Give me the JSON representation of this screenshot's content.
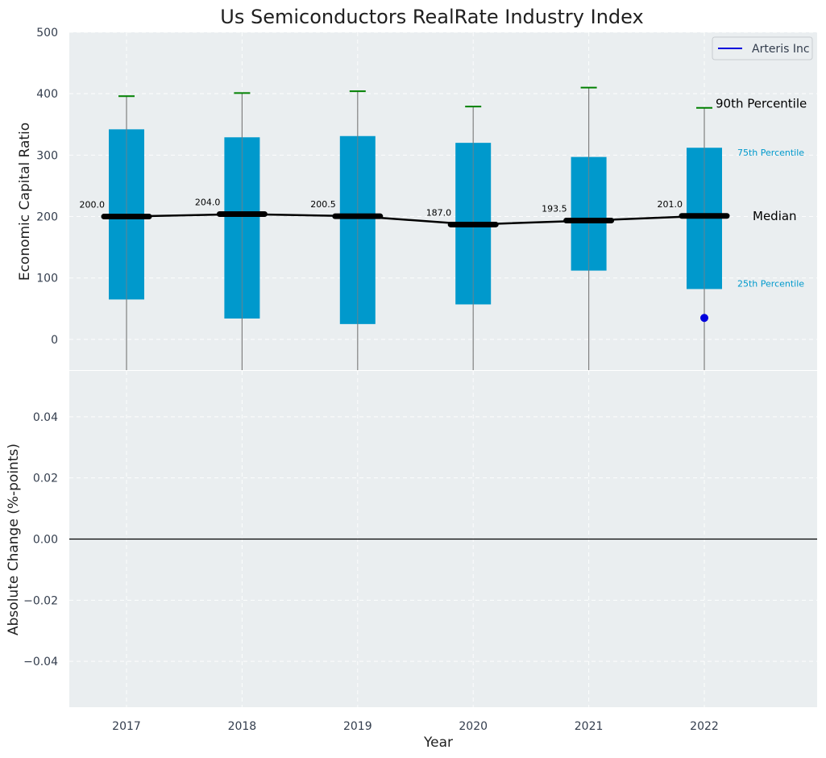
{
  "chart_data": {
    "type": "box",
    "title": "Us Semiconductors RealRate Industry Index",
    "xlabel": "Year",
    "categories": [
      "2017",
      "2018",
      "2019",
      "2020",
      "2021",
      "2022"
    ],
    "top_panel": {
      "ylabel": "Economic Capital Ratio",
      "ylim": [
        -50,
        500
      ],
      "yticks": [
        "0",
        "100",
        "200",
        "300",
        "400",
        "500"
      ],
      "boxes": [
        {
          "year": "2017",
          "p25": 65,
          "p75": 342,
          "median": 200.0,
          "median_label": "200.0",
          "p90": 396
        },
        {
          "year": "2018",
          "p25": 34,
          "p75": 329,
          "median": 204.0,
          "median_label": "204.0",
          "p90": 401
        },
        {
          "year": "2019",
          "p25": 25,
          "p75": 331,
          "median": 200.5,
          "median_label": "200.5",
          "p90": 404
        },
        {
          "year": "2020",
          "p25": 57,
          "p75": 320,
          "median": 187.0,
          "median_label": "187.0",
          "p90": 379
        },
        {
          "year": "2021",
          "p25": 112,
          "p75": 297,
          "median": 193.5,
          "median_label": "193.5",
          "p90": 410
        },
        {
          "year": "2022",
          "p25": 82,
          "p75": 312,
          "median": 201.0,
          "median_label": "201.0",
          "p90": 377
        }
      ],
      "company_points": [
        {
          "year": "2022",
          "value": 35
        }
      ],
      "annotations": {
        "p90": "90th Percentile",
        "p75": "75th Percentile",
        "median": "Median",
        "p25": "25th Percentile"
      },
      "legend": {
        "position": "top-right",
        "entries": [
          {
            "name": "Arteris Inc",
            "color": "#0000dd"
          }
        ]
      },
      "grid": true
    },
    "bottom_panel": {
      "ylabel": "Absolute Change (%-points)",
      "ylim": [
        -0.055,
        0.055
      ],
      "yticks": [
        "−0.04",
        "−0.02",
        "0.00",
        "0.02",
        "0.04"
      ],
      "zero_line": true,
      "grid": true
    },
    "colors": {
      "box": "#0099cc",
      "median": "#000000",
      "whisker_cap": "#008000",
      "whisker": "#808080",
      "company": "#0000dd",
      "panel_bg": "#eaeef0",
      "percentile_label": "#0099cc"
    }
  }
}
